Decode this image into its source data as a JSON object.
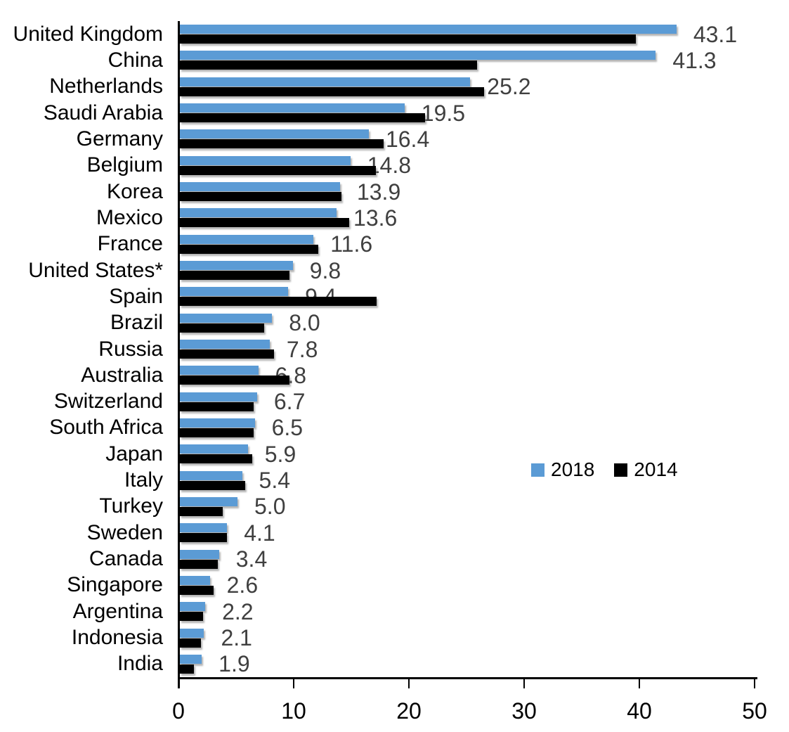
{
  "chart_data": {
    "type": "bar",
    "orientation": "horizontal",
    "title": "",
    "xlabel": "",
    "ylabel": "",
    "xlim": [
      0,
      50
    ],
    "x_ticks": [
      0,
      10,
      20,
      30,
      40,
      50
    ],
    "grid": false,
    "legend_position": "center-right",
    "value_label_format": "one-decimal, shown for 2018 series only",
    "categories": [
      "United Kingdom",
      "China",
      "Netherlands",
      "Saudi Arabia",
      "Germany",
      "Belgium",
      "Korea",
      "Mexico",
      "France",
      "United States*",
      "Spain",
      "Brazil",
      "Russia",
      "Australia",
      "Switzerland",
      "South Africa",
      "Japan",
      "Italy",
      "Turkey",
      "Sweden",
      "Canada",
      "Singapore",
      "Argentina",
      "Indonesia",
      "India"
    ],
    "series": [
      {
        "name": "2018",
        "color": "#5B9BD5",
        "labels_shown": true,
        "values": [
          43.1,
          41.3,
          25.2,
          19.5,
          16.4,
          14.8,
          13.9,
          13.6,
          11.6,
          9.8,
          9.4,
          8.0,
          7.8,
          6.8,
          6.7,
          6.5,
          5.9,
          5.4,
          5.0,
          4.1,
          3.4,
          2.6,
          2.2,
          2.1,
          1.9
        ]
      },
      {
        "name": "2014",
        "color": "#000000",
        "labels_shown": false,
        "estimated_from_pixels": true,
        "values": [
          39.6,
          25.8,
          26.4,
          21.3,
          17.7,
          17.0,
          14.0,
          14.7,
          12.0,
          9.5,
          17.1,
          7.3,
          8.2,
          9.5,
          6.4,
          6.4,
          6.3,
          5.7,
          3.7,
          4.1,
          3.3,
          2.9,
          2.0,
          1.8,
          1.2
        ]
      }
    ]
  },
  "colors": {
    "background": "#FFFFFF",
    "axis": "#000000",
    "data_label": "#404040",
    "category_label": "#000000"
  }
}
